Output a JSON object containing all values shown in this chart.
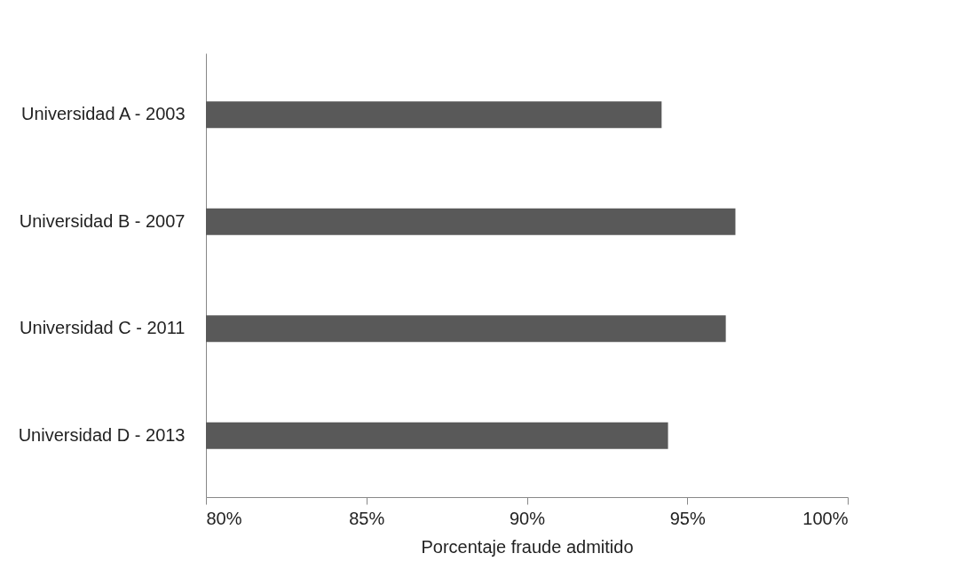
{
  "chart_data": {
    "type": "bar",
    "orientation": "horizontal",
    "xlabel": "Porcentaje fraude admitido",
    "categories": [
      "Universidad A - 2003",
      "Universidad B - 2007",
      "Universidad C - 2011",
      "Universidad D - 2013"
    ],
    "values": [
      94.2,
      96.5,
      96.2,
      94.4
    ],
    "color": "#595959",
    "xlim": [
      80,
      100
    ],
    "xticks": [
      {
        "value": 80,
        "label": "80%"
      },
      {
        "value": 85,
        "label": "85%"
      },
      {
        "value": 90,
        "label": "90%"
      },
      {
        "value": 95,
        "label": "95%"
      },
      {
        "value": 100,
        "label": "100%"
      }
    ],
    "grid": false
  }
}
